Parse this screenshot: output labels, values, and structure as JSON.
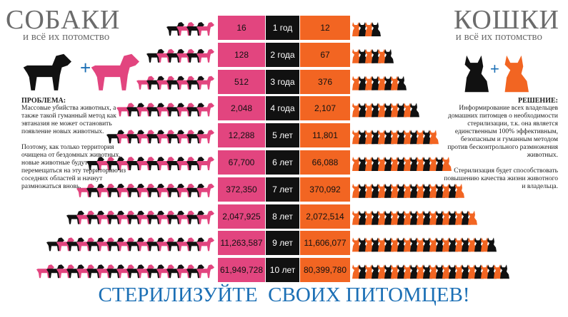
{
  "left": {
    "title": "СОБАКИ",
    "subtitle": "и всё их потомство",
    "heading": "ПРОБЛЕМА:",
    "paragraphs": [
      "Массовые убийства животных, а также такой гуманный метод как эвтаназия не может остановить появление новых животных.",
      "Поэтому, как только территория очищена от бездомных животных, новые животные будут перемещаться на эту территорию из соседних областей и начнут размножаться вновь."
    ]
  },
  "right": {
    "title": "КОШКИ",
    "subtitle": "и всё их потомство",
    "heading": "РЕШЕНИЕ:",
    "paragraphs": [
      "Информирование всех владельцев домашних питомцев о необходимости стерилизации, т.к. она является единственным 100% эффективным, безопасным и гуманным методом против бесконтрольного размножения животных.",
      "Стерилизация будет способствовать повышению качества жизни животного и владельца."
    ]
  },
  "rows": [
    {
      "year": "1 год",
      "dogs": "16",
      "cats": "12"
    },
    {
      "year": "2 года",
      "dogs": "128",
      "cats": "67"
    },
    {
      "year": "3 года",
      "dogs": "512",
      "cats": "376"
    },
    {
      "year": "4 года",
      "dogs": "2,048",
      "cats": "2,107"
    },
    {
      "year": "5 лет",
      "dogs": "12,288",
      "cats": "11,801"
    },
    {
      "year": "6 лет",
      "dogs": "67,700",
      "cats": "66,088"
    },
    {
      "year": "7 лет",
      "dogs": "372,350",
      "cats": "370,092"
    },
    {
      "year": "8 лет",
      "dogs": "2,047,925",
      "cats": "2,072,514"
    },
    {
      "year": "9 лет",
      "dogs": "11,263,587",
      "cats": "11,606,077"
    },
    {
      "year": "10 лет",
      "dogs": "61,949,728",
      "cats": "80,399,780"
    }
  ],
  "footer": "СТЕРИЛИЗУЙТЕ  СВОИХ ПИТОМЦЕВ!"
}
